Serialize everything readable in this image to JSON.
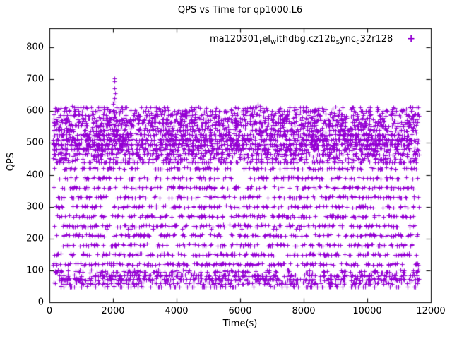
{
  "title": "QPS vs Time for qp1000.L6",
  "xlabel": "Time(s)",
  "ylabel": "QPS",
  "legend": {
    "marker": "+",
    "segments": [
      {
        "text": "ma120301",
        "sub": false
      },
      {
        "text": "r",
        "sub": true
      },
      {
        "text": "el",
        "sub": false
      },
      {
        "text": "w",
        "sub": true
      },
      {
        "text": "ithdbg.cz12b",
        "sub": false
      },
      {
        "text": "s",
        "sub": true
      },
      {
        "text": "ync",
        "sub": false
      },
      {
        "text": "c",
        "sub": true
      },
      {
        "text": "32r128",
        "sub": false
      }
    ]
  },
  "axes": {
    "x": {
      "min": 0,
      "max": 12000,
      "ticks": [
        0,
        2000,
        4000,
        6000,
        8000,
        10000,
        12000
      ]
    },
    "y": {
      "min": 0,
      "max": 860,
      "ticks": [
        0,
        100,
        200,
        300,
        400,
        500,
        600,
        700,
        800
      ]
    }
  },
  "style": {
    "marker_color": "#9400D3",
    "border_color": "#000000",
    "text_color": "#000000",
    "background": "#ffffff"
  },
  "chart_data": {
    "type": "scatter",
    "title": "QPS vs Time for qp1000.L6",
    "xlabel": "Time(s)",
    "ylabel": "QPS",
    "series_name": "ma120301_rel_withdbg.cz12b_sync_c32r128",
    "xlim": [
      0,
      12000
    ],
    "ylim": [
      0,
      860
    ],
    "x_data_range": [
      110,
      11620
    ],
    "n_points": 6000,
    "seed": 1337,
    "marker": "plus",
    "bands": [
      {
        "w": 0.3,
        "type": "normal",
        "mean": 505,
        "sd": 38,
        "min": 438,
        "max": 612,
        "q": 15,
        "jitter": 3
      },
      {
        "w": 0.16,
        "type": "uniform",
        "min": 438,
        "max": 612
      },
      {
        "w": 0.07,
        "type": "uniform",
        "min": 555,
        "max": 612,
        "q": 12,
        "jitter": 2
      },
      {
        "w": 0.18,
        "type": "uniform",
        "min": 95,
        "max": 438,
        "q": 30,
        "jitter": 3
      },
      {
        "w": 0.09,
        "type": "uniform",
        "min": 230,
        "max": 438,
        "q": 30,
        "jitter": 3
      },
      {
        "w": 0.14,
        "type": "normal",
        "mean": 72,
        "sd": 15,
        "min": 48,
        "max": 102,
        "q": 12,
        "jitter": 3
      },
      {
        "w": 0.06,
        "type": "uniform",
        "min": 100,
        "max": 230,
        "q": 30,
        "jitter": 3
      }
    ],
    "outliers": [
      [
        2040,
        702
      ],
      [
        2052,
        693
      ],
      [
        2035,
        671
      ],
      [
        2060,
        655
      ],
      [
        2048,
        640
      ],
      [
        2030,
        630
      ],
      [
        1990,
        622
      ],
      [
        6560,
        620
      ],
      [
        6620,
        617
      ],
      [
        4680,
        615
      ],
      [
        9000,
        614
      ],
      [
        700,
        616
      ],
      [
        11350,
        613
      ]
    ]
  }
}
